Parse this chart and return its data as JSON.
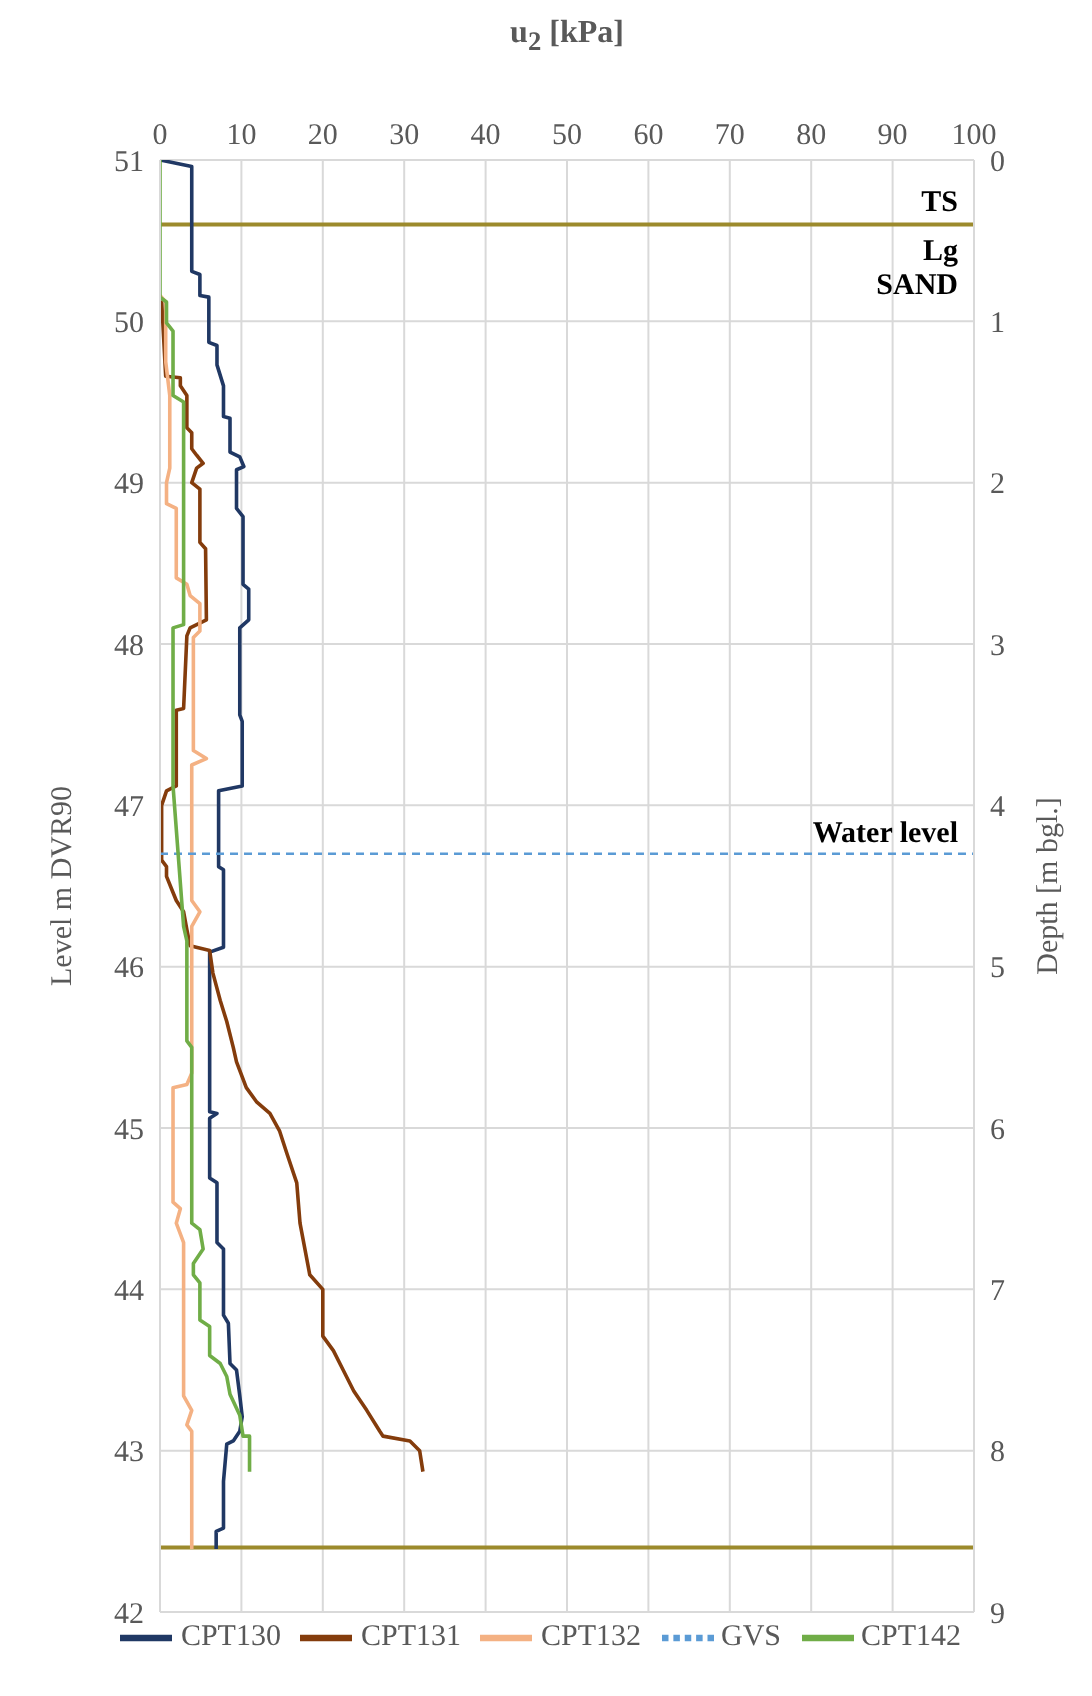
{
  "chart_data": {
    "type": "line",
    "xlabel": "u$_{2}$ [kPa]",
    "ylabel": "Level m DVR90",
    "y2label": "Depth [m bgl.]",
    "xlim": [
      0,
      100
    ],
    "xticks": [
      0,
      10,
      20,
      30,
      40,
      50,
      60,
      70,
      80,
      90,
      100
    ],
    "ylim": [
      42,
      51
    ],
    "yticks": [
      42,
      43,
      44,
      45,
      46,
      47,
      48,
      49,
      50,
      51
    ],
    "y2lim": [
      9,
      0
    ],
    "y2ticks": [
      0,
      1,
      2,
      3,
      4,
      5,
      6,
      7,
      8,
      9
    ],
    "grid": true,
    "legend": "bottom",
    "marker": "none",
    "series": [
      {
        "name": "CPT130",
        "color": "#203864",
        "x": [
          0,
          3.9,
          3.9,
          4.9,
          4.9,
          6,
          6,
          7,
          7,
          7.8,
          7.8,
          8.6,
          8.6,
          9.8,
          10.3,
          9.4,
          9.4,
          10.2,
          10.2,
          10.9,
          10.9,
          9.8,
          9.8,
          10.1,
          10.1,
          7.2,
          7.2,
          7.8,
          7.8,
          6.1,
          6.1,
          7,
          6.1,
          6.1,
          7,
          7,
          7.8,
          7.8,
          8.4,
          8.6,
          9.4,
          9.8,
          10.1,
          9.8,
          9,
          8.2,
          7.8,
          7.8,
          6.9,
          6.9
        ],
        "values": [
          51,
          50.96,
          50.31,
          50.29,
          50.16,
          50.15,
          49.87,
          49.85,
          49.73,
          49.6,
          49.41,
          49.4,
          49.19,
          49.16,
          49.1,
          49.08,
          48.84,
          48.79,
          48.37,
          48.34,
          48.15,
          48.1,
          47.56,
          47.52,
          47.12,
          47.09,
          46.62,
          46.6,
          46.12,
          46.09,
          45.1,
          45.09,
          45.06,
          44.69,
          44.66,
          44.29,
          44.25,
          43.84,
          43.79,
          43.54,
          43.5,
          43.34,
          43.21,
          43.12,
          43.06,
          43.04,
          42.81,
          42.52,
          42.5,
          42.39
        ]
      },
      {
        "name": "CPT131",
        "color": "#843c0c",
        "x": [
          0.2,
          0.7,
          2.5,
          2.5,
          3.3,
          3.3,
          3.9,
          3.9,
          4.5,
          5.3,
          4.5,
          3.9,
          4.9,
          4.9,
          5.6,
          5.7,
          3.7,
          3.3,
          2.9,
          2,
          2,
          0.8,
          0.2,
          0.2,
          0.8,
          0.8,
          1.6,
          2,
          2.9,
          3.3,
          3.7,
          6.1,
          6.5,
          7.4,
          8.2,
          9,
          9.4,
          10.6,
          11.9,
          13.5,
          14.7,
          15.6,
          16.8,
          17.2,
          18.4,
          20,
          20,
          21.3,
          22.5,
          23.8,
          25.4,
          27,
          27.4,
          30.7,
          31.9,
          32.3
        ],
        "values": [
          50.13,
          49.66,
          49.65,
          49.6,
          49.54,
          49.34,
          49.31,
          49.21,
          49.17,
          49.12,
          49.09,
          49,
          48.96,
          48.63,
          48.59,
          48.15,
          48.1,
          48.05,
          47.6,
          47.59,
          47.12,
          47.09,
          47,
          46.66,
          46.62,
          46.56,
          46.46,
          46.41,
          46.34,
          46.23,
          46.13,
          46.1,
          45.96,
          45.79,
          45.66,
          45.5,
          45.41,
          45.25,
          45.16,
          45.09,
          44.98,
          44.84,
          44.66,
          44.41,
          44.09,
          44,
          43.71,
          43.62,
          43.5,
          43.37,
          43.25,
          43.12,
          43.09,
          43.06,
          43,
          42.87
        ]
      },
      {
        "name": "CPT132",
        "color": "#f4b183",
        "x": [
          0,
          0.7,
          0.7,
          1.2,
          1.2,
          0.8,
          0.8,
          2,
          2,
          3.3,
          3.7,
          4.9,
          4.9,
          4.1,
          4.1,
          5.7,
          3.9,
          3.9,
          4.9,
          3.9,
          3.9,
          3.3,
          1.6,
          1.6,
          2.5,
          2,
          2.9,
          2.9,
          3.9,
          3.3,
          3.9,
          3.9
        ],
        "values": [
          50.16,
          50.12,
          49.75,
          49.54,
          49.09,
          49,
          48.87,
          48.84,
          48.41,
          48.37,
          48.3,
          48.25,
          48.08,
          48.04,
          47.34,
          47.29,
          47.25,
          46.41,
          46.34,
          46.25,
          45.34,
          45.27,
          45.25,
          44.54,
          44.5,
          44.41,
          44.29,
          43.34,
          43.25,
          43.16,
          43.12,
          42.39
        ]
      },
      {
        "name": "GVS",
        "color": "#5b9bd5",
        "line_style": "dashed",
        "x": [
          0,
          100
        ],
        "values": [
          46.7,
          46.7
        ]
      },
      {
        "name": "CPT142",
        "color": "#70ad47",
        "x": [
          0,
          0,
          0.8,
          0.8,
          1.6,
          1.6,
          2.9,
          2.9,
          1.6,
          1.6,
          2.9,
          3.3,
          3.3,
          3.9,
          3.9,
          4.9,
          5.3,
          4.1,
          4.1,
          4.9,
          4.9,
          6.1,
          6.1,
          7.4,
          8.2,
          8.6,
          9.8,
          10.2,
          11,
          11
        ],
        "values": [
          51,
          50.15,
          50.12,
          49.99,
          49.94,
          49.54,
          49.5,
          48.12,
          48.1,
          47.12,
          46.25,
          46.16,
          45.54,
          45.5,
          44.41,
          44.37,
          44.25,
          44.16,
          44.09,
          44.04,
          43.81,
          43.77,
          43.59,
          43.54,
          43.46,
          43.35,
          43.22,
          43.09,
          43.09,
          42.87
        ]
      }
    ],
    "ref_lines": [
      {
        "axis": "y",
        "value": 50.6,
        "label": "TS",
        "color": "#9c8a2c"
      },
      {
        "axis": "y",
        "value": 42.4,
        "label": null,
        "color": "#9c8a2c"
      }
    ],
    "annotations": [
      "Lg SAND",
      {
        "text": "Water level",
        "x": 100,
        "y": 46.7
      }
    ]
  }
}
